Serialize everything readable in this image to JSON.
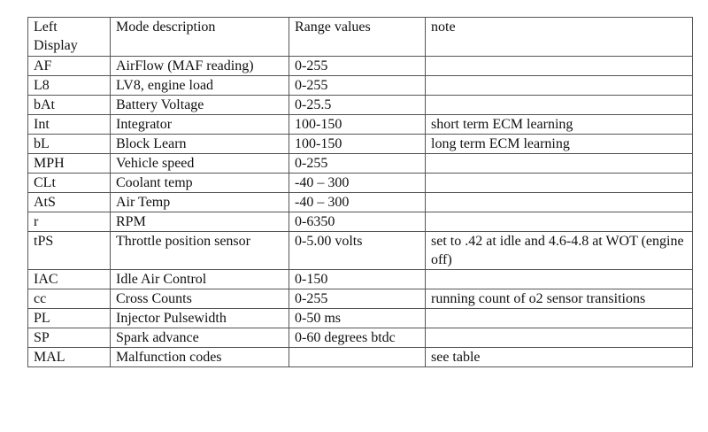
{
  "headers": [
    "Left Display",
    "Mode description",
    "Range values",
    "note"
  ],
  "rows": [
    [
      "AF",
      "AirFlow (MAF reading)",
      "0-255",
      ""
    ],
    [
      "L8",
      "LV8, engine load",
      "0-255",
      ""
    ],
    [
      "bAt",
      "Battery Voltage",
      "0-25.5",
      ""
    ],
    [
      "Int",
      "Integrator",
      "100-150",
      "short term ECM learning"
    ],
    [
      "bL",
      "Block Learn",
      "100-150",
      "long term ECM learning"
    ],
    [
      "MPH",
      "Vehicle speed",
      "0-255",
      ""
    ],
    [
      "CLt",
      "Coolant temp",
      "-40 – 300",
      ""
    ],
    [
      "AtS",
      "Air Temp",
      "-40 – 300",
      ""
    ],
    [
      "r",
      "RPM",
      "0-6350",
      ""
    ],
    [
      "tPS",
      "Throttle position sensor",
      "0-5.00 volts",
      "set to .42 at idle and 4.6-4.8 at WOT (engine off)"
    ],
    [
      "IAC",
      "Idle Air Control",
      "0-150",
      ""
    ],
    [
      "cc",
      "Cross Counts",
      "0-255",
      "running count of o2 sensor transitions"
    ],
    [
      "PL",
      "Injector Pulsewidth",
      "0-50 ms",
      ""
    ],
    [
      "SP",
      "Spark advance",
      "0-60 degrees btdc",
      ""
    ],
    [
      "MAL",
      "Malfunction codes",
      "",
      "see table"
    ]
  ]
}
